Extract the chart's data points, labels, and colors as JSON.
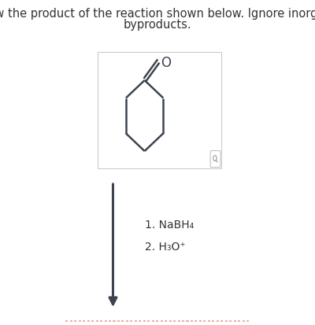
{
  "title_line1": "Draw the product of the reaction shown below. Ignore inorganic",
  "title_line2": "byproducts.",
  "title_fontsize": 10.5,
  "reagent1": "1. NaBH₄",
  "reagent2": "2. H₃O⁺",
  "reagent_fontsize": 10,
  "bg_color": "#ffffff",
  "box_facecolor": "#ffffff",
  "box_edgecolor": "#cccccc",
  "molecule_color": "#3d4450",
  "arrow_color": "#3d4450",
  "text_color": "#333333",
  "dashed_line_color": "#e8a090"
}
